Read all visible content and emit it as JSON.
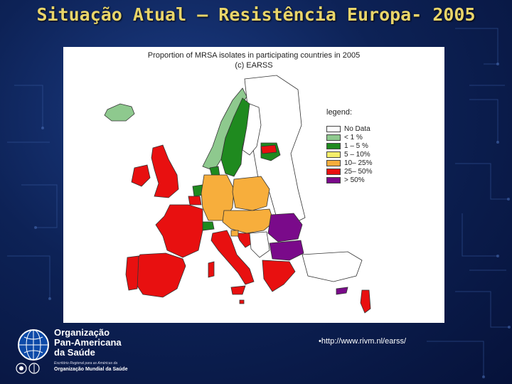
{
  "slide": {
    "title": "Situação Atual – Resistência Europa- 2005"
  },
  "map": {
    "heading": "Proportion of MRSA isolates in participating countries in 2005",
    "subheading": "(c) EARSS",
    "legend": {
      "title": "legend:",
      "items": [
        {
          "label": "No Data",
          "color": "#ffffff"
        },
        {
          "label": "< 1 %",
          "color": "#8ec98e"
        },
        {
          "label": "1 – 5 %",
          "color": "#1f8a1f"
        },
        {
          "label": "5 – 10%",
          "color": "#f4ee6a"
        },
        {
          "label": "10– 25%",
          "color": "#f7ae3c"
        },
        {
          "label": "25– 50%",
          "color": "#e81010"
        },
        {
          "label": "> 50%",
          "color": "#7a0a8a"
        }
      ]
    }
  },
  "source": {
    "link": "•http://www.rivm.nl/earss/"
  },
  "logo": {
    "line1": "Organização",
    "line2": "Pan-Americana",
    "line3": "da Saúde",
    "small_top": "Escritório Regional para as Américas da",
    "small_bottom": "Organização Mundial da Saúde",
    "globe_icon": "globe-icon"
  }
}
